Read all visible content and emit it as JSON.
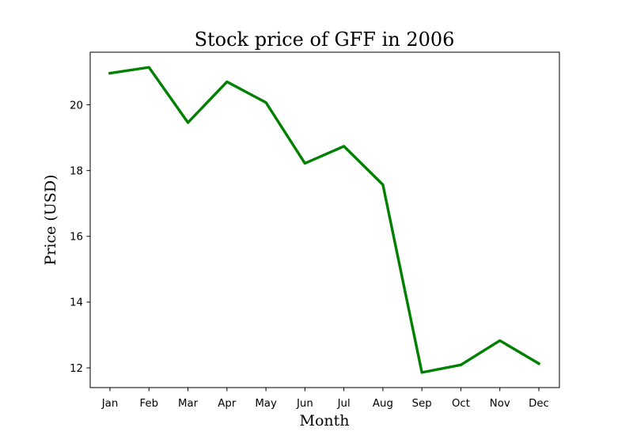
{
  "chart_data": {
    "type": "line",
    "title": "Stock price of GFF in 2006",
    "xlabel": "Month",
    "ylabel": "Price (USD)",
    "categories": [
      "Jan",
      "Feb",
      "Mar",
      "Apr",
      "May",
      "Jun",
      "Jul",
      "Aug",
      "Sep",
      "Oct",
      "Nov",
      "Dec"
    ],
    "series": [
      {
        "color": "#008000",
        "values": [
          20.96,
          21.14,
          19.46,
          20.7,
          20.07,
          18.22,
          18.74,
          17.57,
          11.86,
          12.09,
          12.83,
          12.13
        ]
      }
    ],
    "ylim": [
      11.4,
      21.6
    ],
    "yticks": [
      12,
      14,
      16,
      18,
      20
    ],
    "grid": false,
    "legend": "none"
  }
}
